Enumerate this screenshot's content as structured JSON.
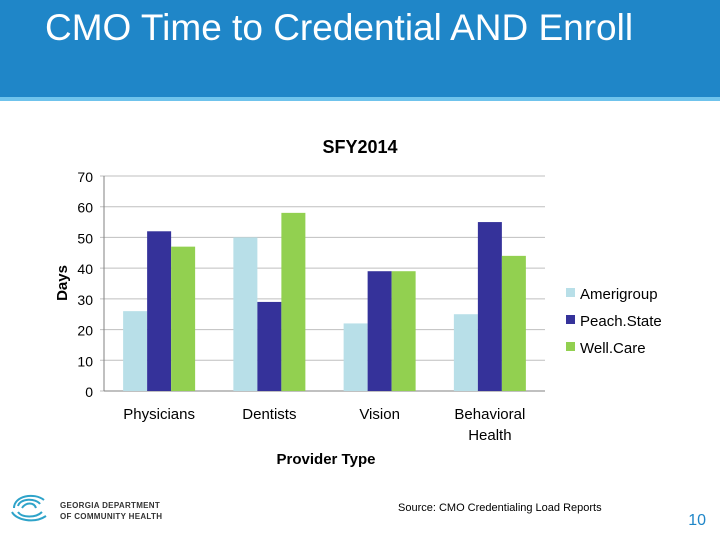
{
  "header": {
    "title": "CMO Time to Credential AND Enroll"
  },
  "chart_data": {
    "type": "bar",
    "title": "SFY2014",
    "xlabel": "Provider Type",
    "ylabel": "Days",
    "ylim": [
      0,
      70
    ],
    "yticks": [
      0,
      10,
      20,
      30,
      40,
      50,
      60,
      70
    ],
    "categories": [
      "Physicians",
      "Dentists",
      "Vision",
      "Behavioral Health"
    ],
    "series": [
      {
        "name": "Amerigroup",
        "values": [
          26,
          50,
          22,
          25
        ],
        "color": "#b8dfe8"
      },
      {
        "name": "Peach.State",
        "values": [
          52,
          29,
          39,
          55
        ],
        "color": "#35329a"
      },
      {
        "name": "Well.Care",
        "values": [
          47,
          58,
          39,
          44
        ],
        "color": "#92d050"
      }
    ],
    "legend_position": "right",
    "grid": true
  },
  "footer": {
    "org_line1": "GEORGIA DEPARTMENT",
    "org_line2": "OF COMMUNITY HEALTH",
    "source": "Source: CMO Credentialing Load Reports",
    "page_number": "10"
  },
  "colors": {
    "header_bg": "#1f86c8",
    "header_line": "#6fc3ec",
    "page_number": "#1f86c8"
  }
}
